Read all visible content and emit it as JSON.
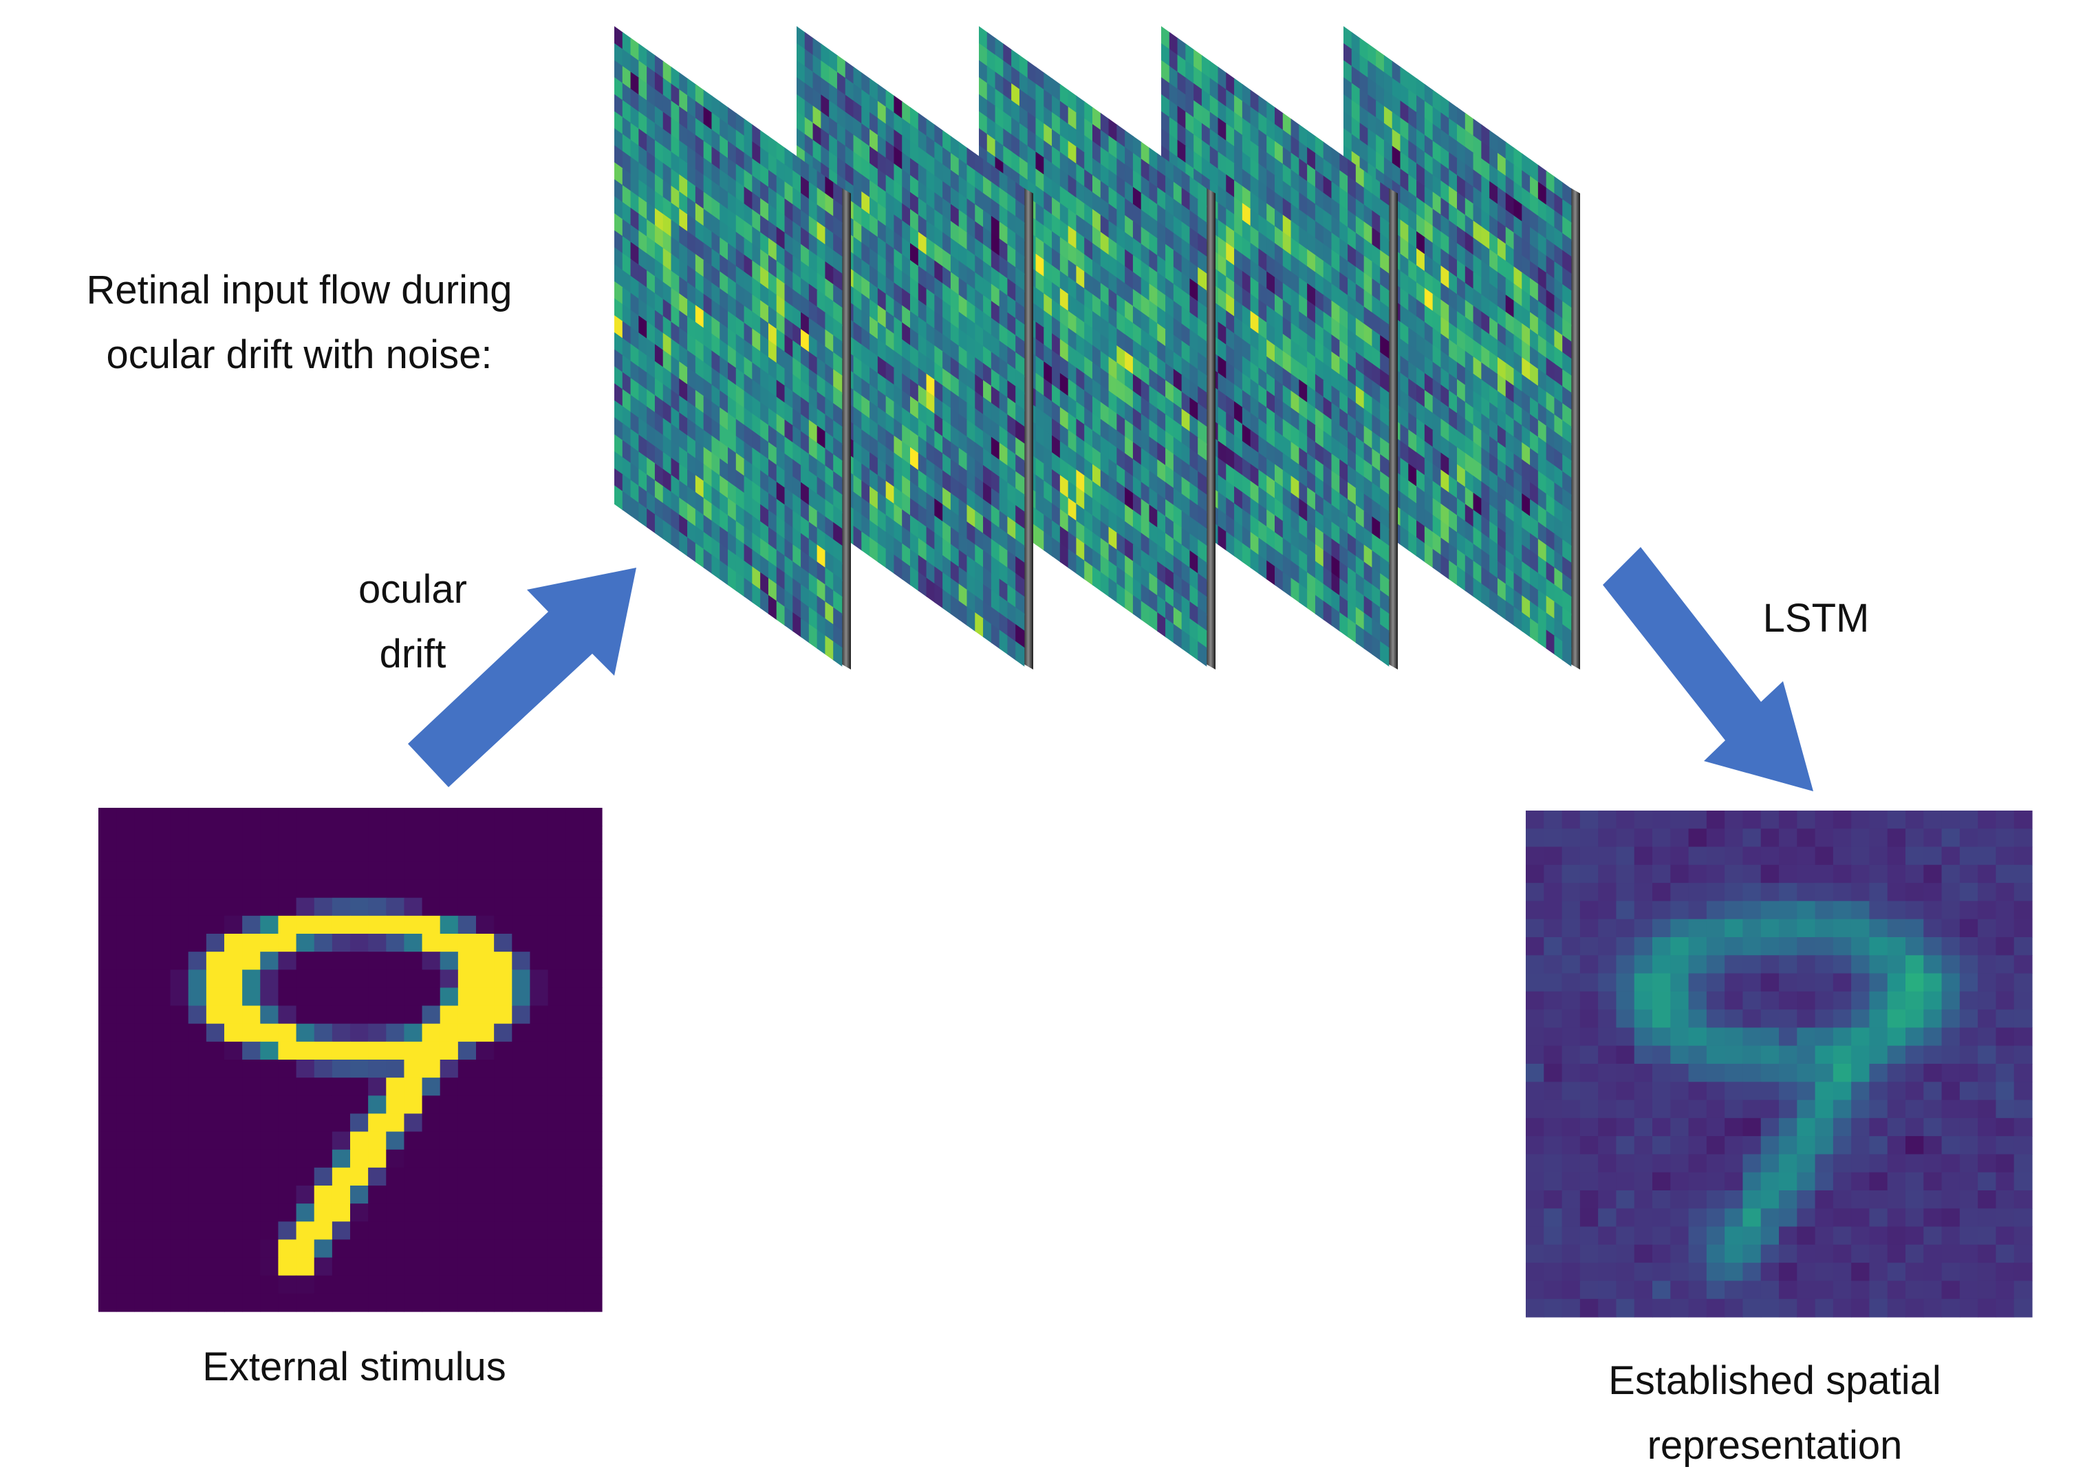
{
  "labels": {
    "retinal_line1": "Retinal input flow during",
    "retinal_line2": "ocular drift with noise:",
    "drift_line1": "ocular",
    "drift_line2": "drift",
    "lstm": "LSTM",
    "external": "External stimulus",
    "established_line1": "Established spatial",
    "established_line2": "representation"
  },
  "colors": {
    "arrow": "#4472C4",
    "viridis": [
      "#440154",
      "#472D7B",
      "#3B528B",
      "#2C728E",
      "#21918C",
      "#28AE80",
      "#5EC962",
      "#ADDC30",
      "#FDE725"
    ]
  },
  "grid_size": 28,
  "noisy_frame_count": 5
}
